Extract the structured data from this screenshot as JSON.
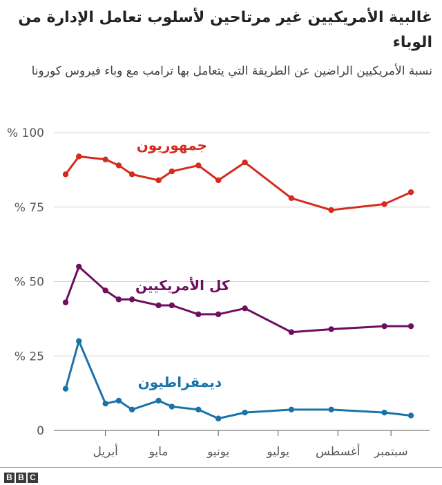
{
  "title": "غالبية الأمريكيين غير مرتاحين لأسلوب تعامل الإدارة من الوباء",
  "subtitle": "نسبة الأمريكيين الراضين عن الطريقة التي يتعامل بها ترامب مع وباء فيروس كورونا",
  "source_logo": "BBC",
  "chart_data": {
    "type": "line",
    "title": "غالبية الأمريكيين غير مرتاحين لأسلوب تعامل الإدارة من الوباء",
    "xlabel": "",
    "ylabel": "",
    "ylim": [
      0,
      100
    ],
    "grid": true,
    "x_ticks": [
      {
        "label": "أبريل",
        "x": 3
      },
      {
        "label": "مايو",
        "x": 7
      },
      {
        "label": "يونيو",
        "x": 11.5
      },
      {
        "label": "يوليو",
        "x": 16
      },
      {
        "label": "أغسطس",
        "x": 20.5
      },
      {
        "label": "سبتمبر",
        "x": 24.5
      }
    ],
    "y_ticks": [
      {
        "value": 0,
        "label": "0"
      },
      {
        "value": 25,
        "label": "% 25"
      },
      {
        "value": 50,
        "label": "% 50"
      },
      {
        "value": 75,
        "label": "% 75"
      },
      {
        "value": 100,
        "label": "% 100"
      }
    ],
    "x": [
      0,
      1,
      3,
      4,
      5,
      7,
      8,
      10,
      11.5,
      13.5,
      17,
      20,
      24,
      26
    ],
    "series": [
      {
        "name": "جمهوريون",
        "color": "#d52a1d",
        "values": [
          86,
          92,
          91,
          89,
          86,
          84,
          87,
          89,
          84,
          90,
          78,
          74,
          76,
          80
        ]
      },
      {
        "name": "كل الأمريكيين",
        "color": "#6d0f5e",
        "values": [
          43,
          55,
          47,
          44,
          44,
          42,
          42,
          39,
          39,
          41,
          33,
          34,
          35,
          35
        ]
      },
      {
        "name": "ديمقراطيون",
        "color": "#1a73a8",
        "values": [
          14,
          30,
          9,
          10,
          7,
          10,
          8,
          7,
          4,
          6,
          7,
          7,
          6,
          5
        ]
      }
    ]
  }
}
